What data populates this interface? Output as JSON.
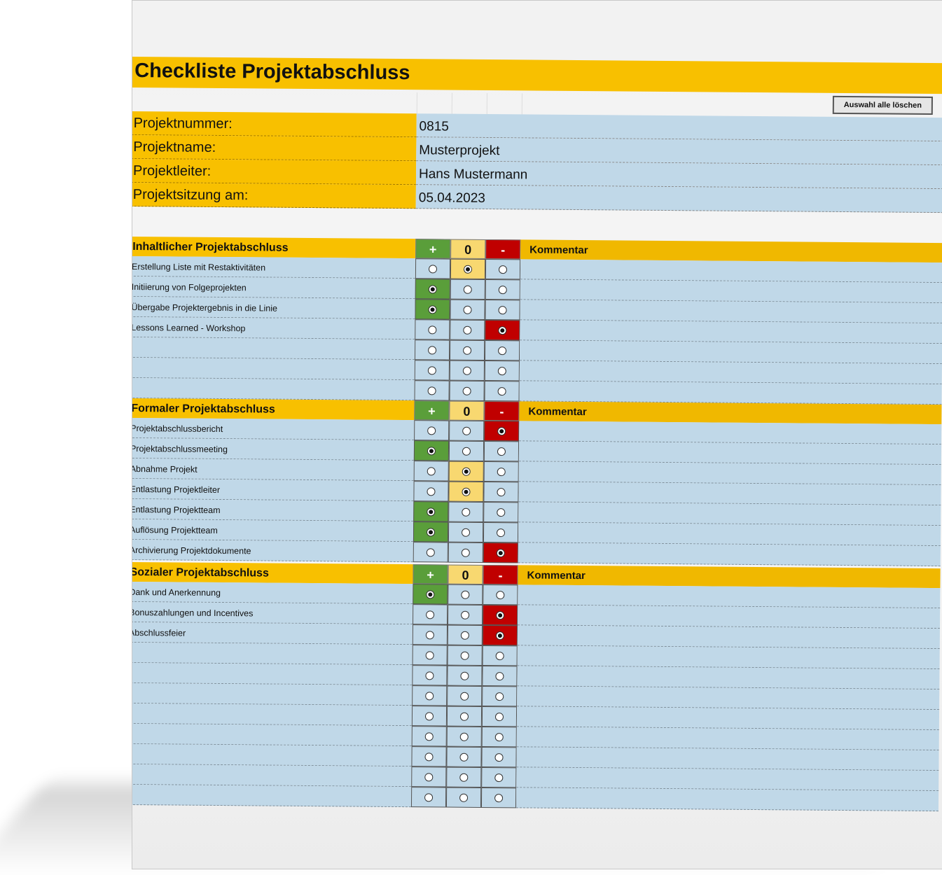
{
  "title": "Checkliste Projektabschluss",
  "clear_button": "Auswahl alle löschen",
  "info": [
    {
      "label": "Projektnummer:",
      "value": "0815"
    },
    {
      "label": "Projektname:",
      "value": "Musterprojekt"
    },
    {
      "label": "Projektleiter:",
      "value": "Hans Mustermann"
    },
    {
      "label": "Projektsitzung am:",
      "value": "05.04.2023"
    }
  ],
  "header_symbols": {
    "plus": "+",
    "zero": "0",
    "minus": "-"
  },
  "comment_label": "Kommentar",
  "colors": {
    "plus": "#5a9e3a",
    "zero": "#f8d870",
    "minus": "#c00000",
    "header": "#f8c000",
    "cell": "#c0d8e8"
  },
  "sections": [
    {
      "title": "Inhaltlicher Projektabschluss",
      "rows": [
        {
          "label": "Erstellung Liste mit Restaktivitäten",
          "selected": 1
        },
        {
          "label": "Initiierung von Folgeprojekten",
          "selected": 0
        },
        {
          "label": "Übergabe Projektergebnis in die Linie",
          "selected": 0
        },
        {
          "label": "Lessons Learned - Workshop",
          "selected": 2
        },
        {
          "label": "",
          "selected": null
        },
        {
          "label": "",
          "selected": null
        },
        {
          "label": "",
          "selected": null
        }
      ]
    },
    {
      "title": "Formaler Projektabschluss",
      "rows": [
        {
          "label": "Projektabschlussbericht",
          "selected": 2
        },
        {
          "label": "Projektabschlussmeeting",
          "selected": 0
        },
        {
          "label": "Abnahme Projekt",
          "selected": 1
        },
        {
          "label": "Entlastung Projektleiter",
          "selected": 1
        },
        {
          "label": "Entlastung Projektteam",
          "selected": 0
        },
        {
          "label": "Auflösung Projektteam",
          "selected": 0
        },
        {
          "label": "Archivierung Projektdokumente",
          "selected": 2
        }
      ]
    },
    {
      "title": "Sozialer Projektabschluss",
      "rows": [
        {
          "label": "Dank und Anerkennung",
          "selected": 0
        },
        {
          "label": "Bonuszahlungen und Incentives",
          "selected": 2
        },
        {
          "label": "Abschlussfeier",
          "selected": 2
        },
        {
          "label": "",
          "selected": null
        },
        {
          "label": "",
          "selected": null
        },
        {
          "label": "",
          "selected": null
        },
        {
          "label": "",
          "selected": null
        },
        {
          "label": "",
          "selected": null
        },
        {
          "label": "",
          "selected": null
        },
        {
          "label": "",
          "selected": null
        },
        {
          "label": "",
          "selected": null
        }
      ]
    }
  ]
}
